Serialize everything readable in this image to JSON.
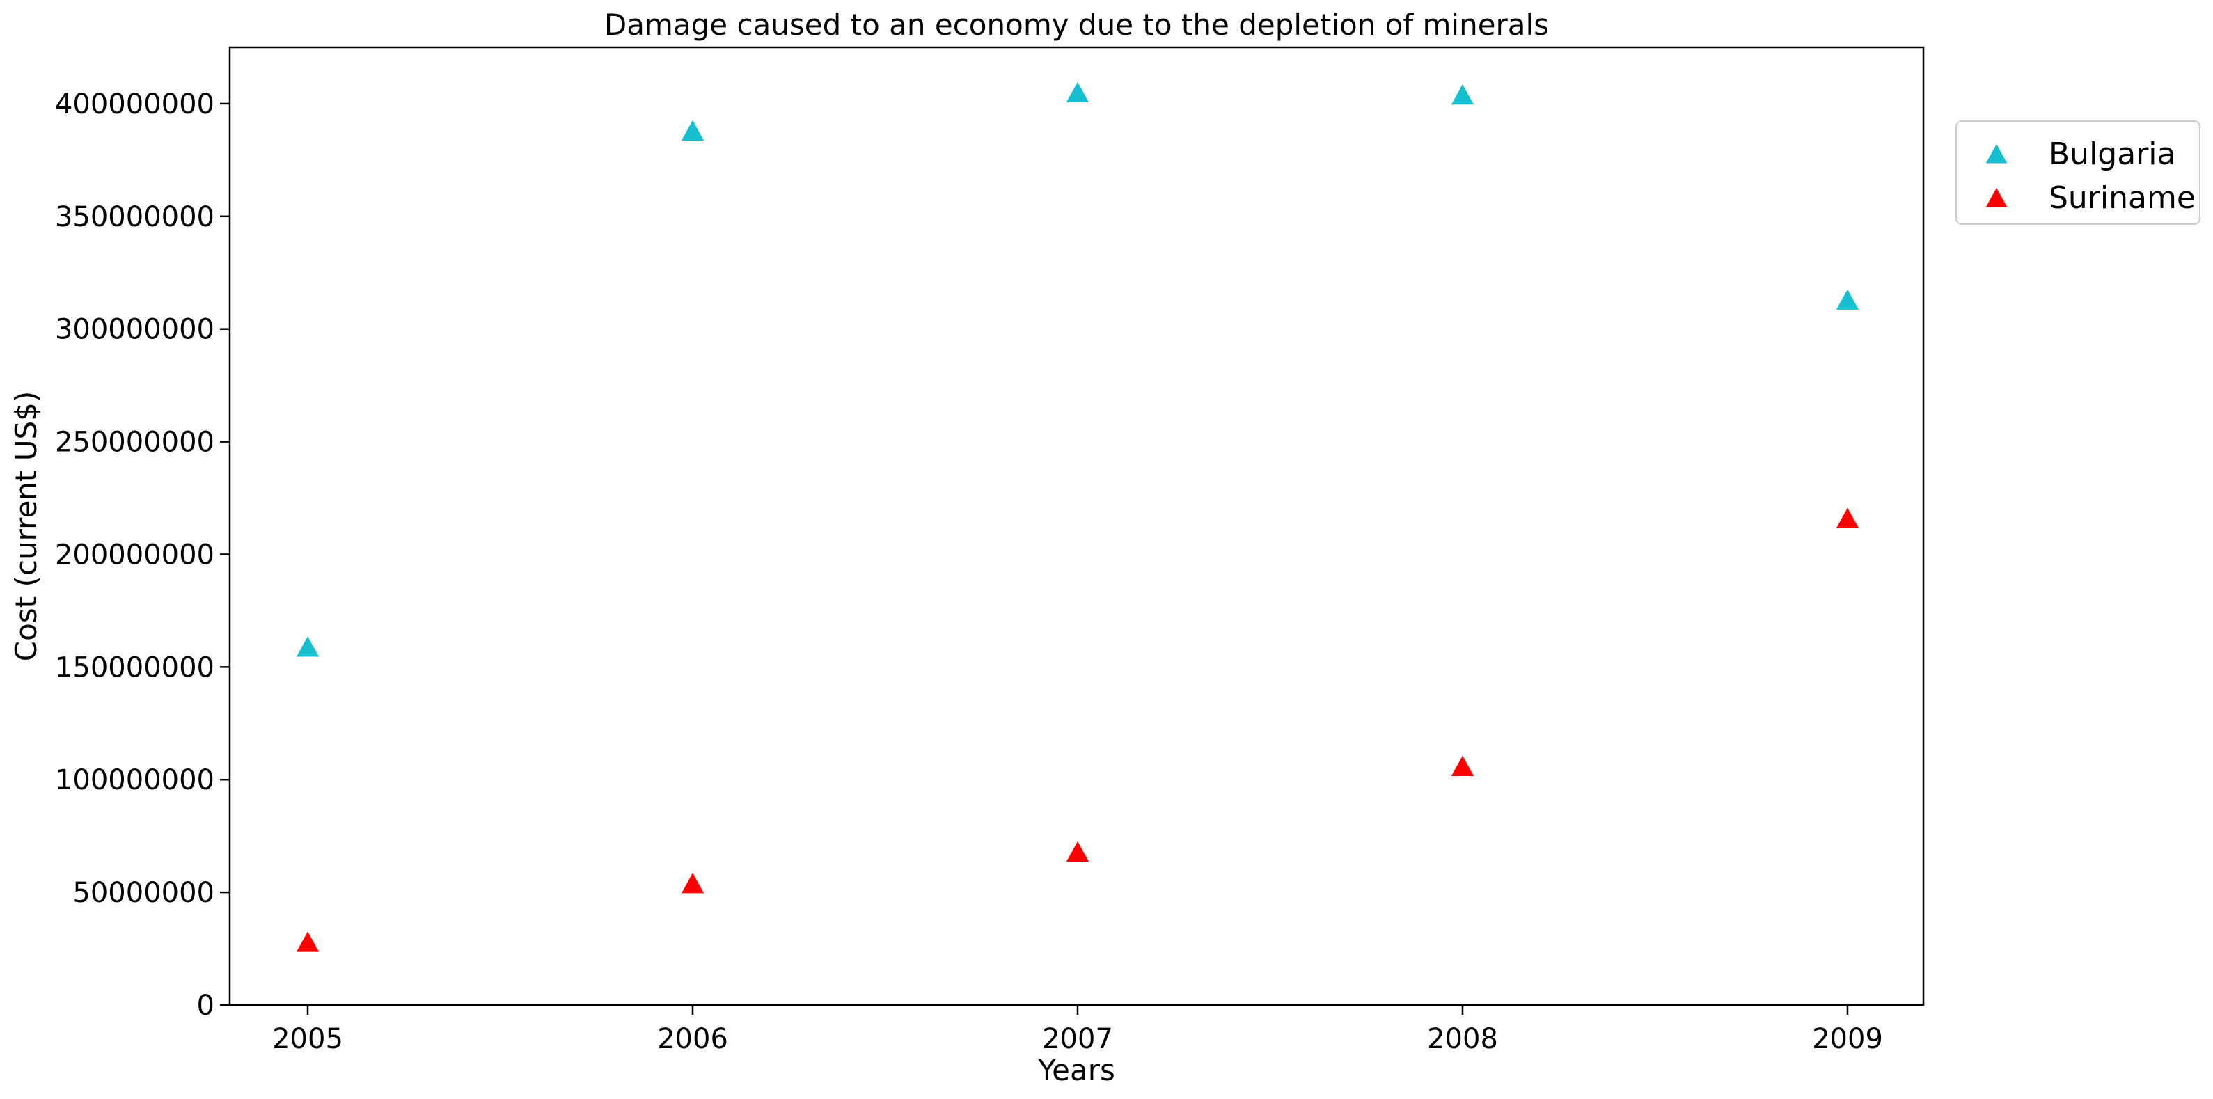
{
  "chart_data": {
    "type": "scatter",
    "title": "Damage caused to an economy due to the depletion of minerals",
    "xlabel": "Years",
    "ylabel": "Cost (current US$)",
    "categories": [
      "2005",
      "2006",
      "2007",
      "2008",
      "2009"
    ],
    "ylim": [
      0,
      425000000
    ],
    "yticks": [
      0,
      50000000,
      100000000,
      150000000,
      200000000,
      250000000,
      300000000,
      350000000,
      400000000
    ],
    "ytick_labels": [
      "0",
      "50000000",
      "100000000",
      "150000000",
      "200000000",
      "250000000",
      "300000000",
      "350000000",
      "400000000"
    ],
    "grid": false,
    "legend_position": "outside-top-right",
    "marker": "triangle-up",
    "series": [
      {
        "name": "Bulgaria",
        "color": "#17becf",
        "values": [
          159000000,
          388000000,
          405000000,
          404000000,
          313000000
        ]
      },
      {
        "name": "Suriname",
        "color": "#ff0000",
        "values": [
          28000000,
          54000000,
          68000000,
          106000000,
          216000000
        ]
      }
    ]
  }
}
